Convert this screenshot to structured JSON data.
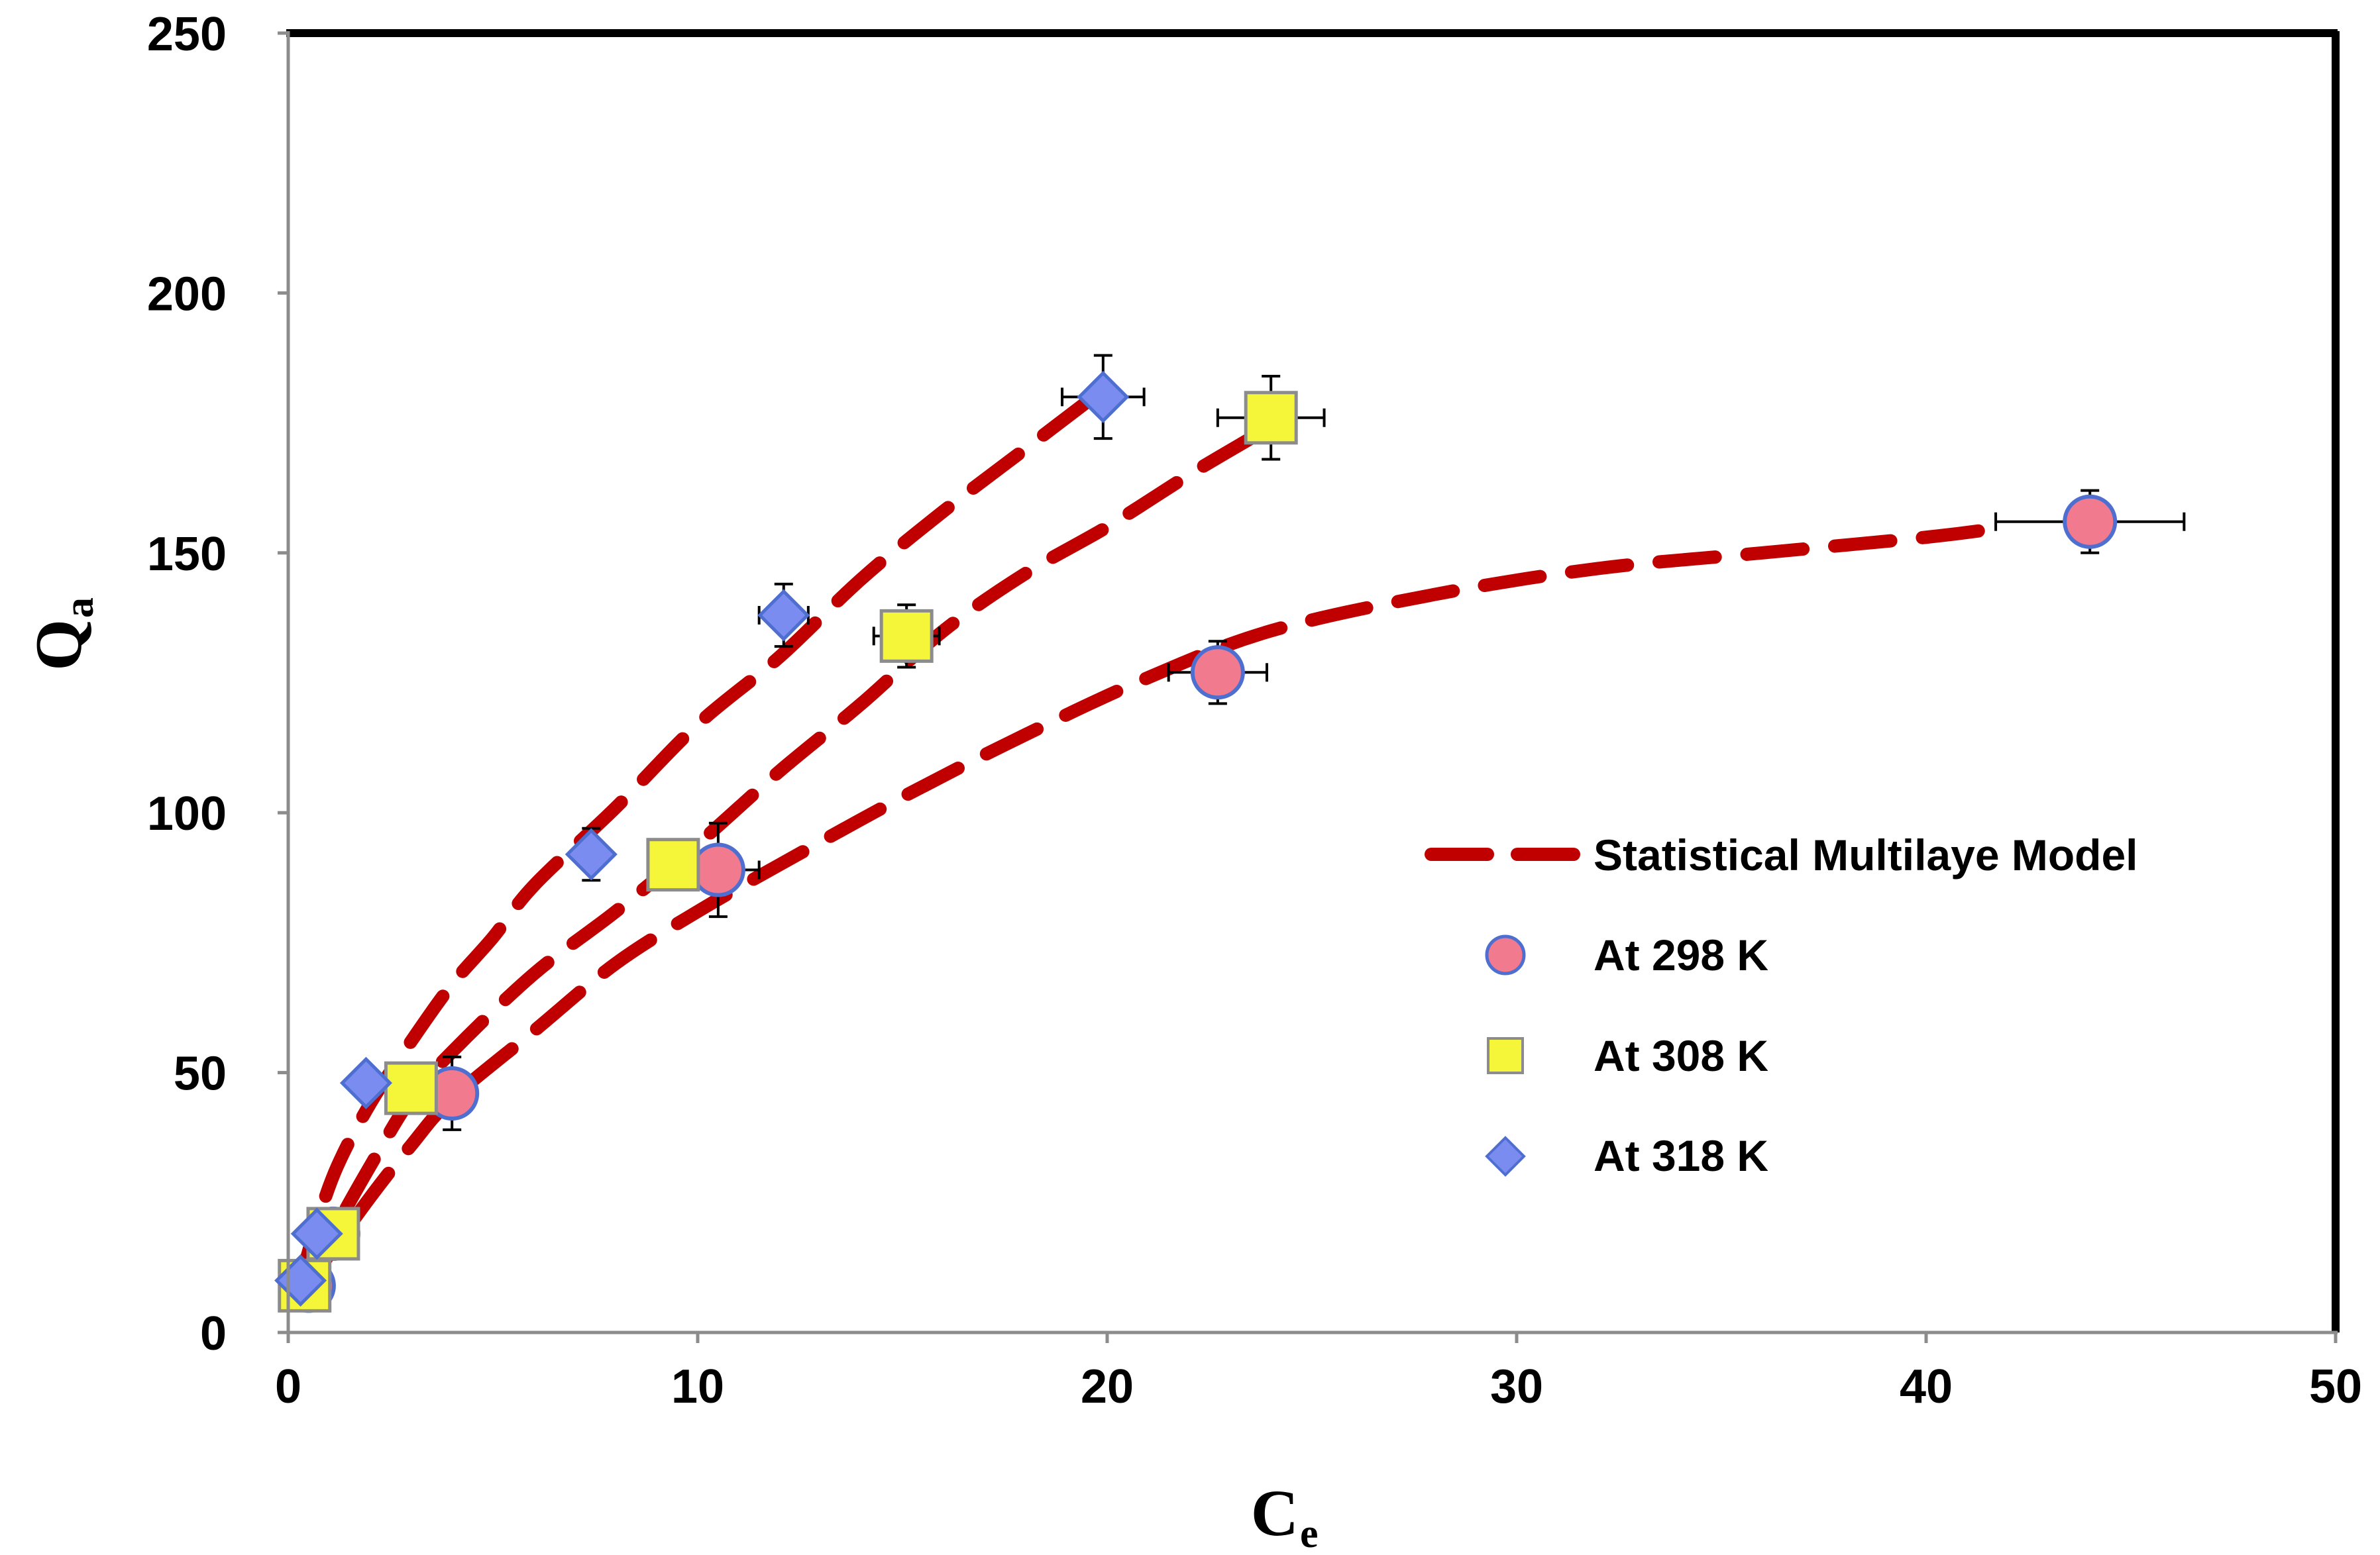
{
  "chart_data": {
    "type": "scatter",
    "xlabel": "C",
    "xlabel_sub": "e",
    "ylabel": "Q",
    "ylabel_sub": "a",
    "xlim": [
      0,
      50
    ],
    "ylim": [
      0,
      250
    ],
    "x_ticks": [
      "0",
      "10",
      "20",
      "30",
      "40",
      "50"
    ],
    "y_ticks": [
      "0",
      "50",
      "100",
      "150",
      "200",
      "250"
    ],
    "grid": false,
    "legend_position": "center-right",
    "legend": {
      "model": "Statistical Multilaye Model",
      "s298": "At 298 K",
      "s308": "At 308 K",
      "s318": "At 318 K"
    },
    "colors": {
      "model": "#c00000",
      "s298": "#f27a8e",
      "s298_edge": "#4f6fd0",
      "s308": "#f5f53a",
      "s308_edge": "#8c8c8c",
      "s318": "#7b8cf0",
      "s318_edge": "#4f6fd0"
    },
    "series": [
      {
        "name": "At 298 K",
        "marker": "circle",
        "points": [
          {
            "x": 0.5,
            "y": 9,
            "xerr": 0,
            "yerr": 0
          },
          {
            "x": 1.1,
            "y": 19,
            "xerr": 0,
            "yerr": 0
          },
          {
            "x": 4.0,
            "y": 46,
            "xerr": 0,
            "yerr": 7
          },
          {
            "x": 10.5,
            "y": 89,
            "xerr": 1.0,
            "yerr": 9
          },
          {
            "x": 22.7,
            "y": 127,
            "xerr": 1.2,
            "yerr": 6
          },
          {
            "x": 44.0,
            "y": 156,
            "xerr": 2.3,
            "yerr": 6
          }
        ]
      },
      {
        "name": "At 308 K",
        "marker": "square",
        "points": [
          {
            "x": 0.4,
            "y": 9,
            "xerr": 0,
            "yerr": 0
          },
          {
            "x": 1.1,
            "y": 19,
            "xerr": 0,
            "yerr": 0
          },
          {
            "x": 3.0,
            "y": 47,
            "xerr": 0,
            "yerr": 0
          },
          {
            "x": 9.4,
            "y": 90,
            "xerr": 0,
            "yerr": 0
          },
          {
            "x": 15.1,
            "y": 134,
            "xerr": 0.8,
            "yerr": 6
          },
          {
            "x": 24.0,
            "y": 176,
            "xerr": 1.3,
            "yerr": 8
          }
        ]
      },
      {
        "name": "At 318 K",
        "marker": "diamond",
        "points": [
          {
            "x": 0.3,
            "y": 10,
            "xerr": 0,
            "yerr": 0
          },
          {
            "x": 0.7,
            "y": 19,
            "xerr": 0,
            "yerr": 0
          },
          {
            "x": 1.9,
            "y": 48,
            "xerr": 0,
            "yerr": 0
          },
          {
            "x": 7.4,
            "y": 92,
            "xerr": 0,
            "yerr": 5
          },
          {
            "x": 12.1,
            "y": 138,
            "xerr": 0.6,
            "yerr": 6
          },
          {
            "x": 19.9,
            "y": 180,
            "xerr": 1.0,
            "yerr": 8
          }
        ]
      }
    ],
    "model_curves": [
      {
        "name": "Statistical Multilaye Model 298 K",
        "points": [
          [
            0.4,
            8
          ],
          [
            1,
            15
          ],
          [
            2,
            26
          ],
          [
            3,
            36
          ],
          [
            4,
            45
          ],
          [
            6,
            58
          ],
          [
            8,
            71
          ],
          [
            10,
            81
          ],
          [
            12,
            90
          ],
          [
            15,
            103
          ],
          [
            18,
            115
          ],
          [
            21,
            126
          ],
          [
            24,
            135
          ],
          [
            28,
            142
          ],
          [
            32,
            147
          ],
          [
            36,
            150
          ],
          [
            40,
            153
          ],
          [
            42,
            155
          ]
        ]
      },
      {
        "name": "Statistical Multilaye Model 308 K",
        "points": [
          [
            0.4,
            9
          ],
          [
            1,
            18
          ],
          [
            2,
            32
          ],
          [
            3,
            45
          ],
          [
            4,
            54
          ],
          [
            6,
            69
          ],
          [
            8,
            81
          ],
          [
            10,
            94
          ],
          [
            12,
            108
          ],
          [
            14,
            121
          ],
          [
            16,
            135
          ],
          [
            18,
            146
          ],
          [
            20,
            155
          ],
          [
            22,
            165
          ],
          [
            23.5,
            172
          ]
        ]
      },
      {
        "name": "Statistical Multilaye Model 318 K",
        "points": [
          [
            0.3,
            10
          ],
          [
            0.7,
            21
          ],
          [
            1.2,
            32
          ],
          [
            2,
            44
          ],
          [
            3,
            56
          ],
          [
            4,
            67
          ],
          [
            5,
            76
          ],
          [
            6,
            86
          ],
          [
            8,
            101
          ],
          [
            10,
            117
          ],
          [
            12,
            130
          ],
          [
            14,
            145
          ],
          [
            16,
            158
          ],
          [
            18,
            170
          ],
          [
            19.5,
            179
          ]
        ]
      }
    ]
  }
}
